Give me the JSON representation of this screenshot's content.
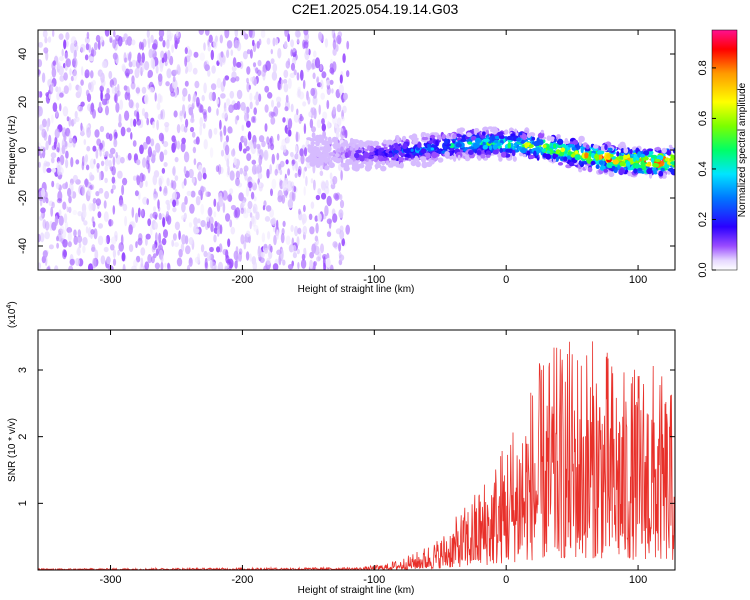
{
  "title": "C2E1.2025.054.19.14.G03",
  "colors": {
    "line": "#e8302a",
    "axis": "#000000"
  },
  "chart_data": [
    {
      "type": "heatmap",
      "xlabel": "Height of straight line (km)",
      "ylabel": "Frequency (Hz)",
      "xlim": [
        -355,
        128
      ],
      "ylim": [
        -50,
        50
      ],
      "xticks": [
        -300,
        -200,
        -100,
        0,
        100
      ],
      "yticks": [
        -40,
        -20,
        0,
        20,
        40
      ],
      "colorbar": {
        "label": "Normalized spectral amplitude",
        "range": [
          0,
          0.95
        ],
        "ticks": [
          0.0,
          0.2,
          0.4,
          0.6,
          0.8
        ]
      },
      "regions": [
        {
          "description": "scattered low-amplitude noise",
          "x": [
            -355,
            -120
          ],
          "y": [
            -50,
            50
          ],
          "amplitude": 0.05
        },
        {
          "description": "signal band",
          "x": [
            -150,
            128
          ],
          "frequency_center": 0,
          "amplitude_max": 0.95
        }
      ]
    },
    {
      "type": "line",
      "xlabel": "Height of straight line (km)",
      "ylabel": "SNR (10 * v/v)",
      "y_multiplier": "(x10",
      "y_multiplier_exp": "4",
      "xlim": [
        -355,
        128
      ],
      "ylim": [
        0,
        3.6
      ],
      "xticks": [
        -300,
        -200,
        -100,
        0,
        100
      ],
      "yticks": [
        1,
        2,
        3
      ],
      "envelope": [
        {
          "x": -355,
          "y": 0.02
        },
        {
          "x": -110,
          "y": 0.04
        },
        {
          "x": -90,
          "y": 0.1
        },
        {
          "x": -70,
          "y": 0.25
        },
        {
          "x": -50,
          "y": 0.5
        },
        {
          "x": -30,
          "y": 1.0
        },
        {
          "x": -10,
          "y": 1.6
        },
        {
          "x": 10,
          "y": 2.5
        },
        {
          "x": 30,
          "y": 3.3
        },
        {
          "x": 50,
          "y": 3.5
        },
        {
          "x": 70,
          "y": 3.5
        },
        {
          "x": 90,
          "y": 3.0
        },
        {
          "x": 110,
          "y": 3.2
        },
        {
          "x": 128,
          "y": 2.6
        }
      ]
    }
  ]
}
